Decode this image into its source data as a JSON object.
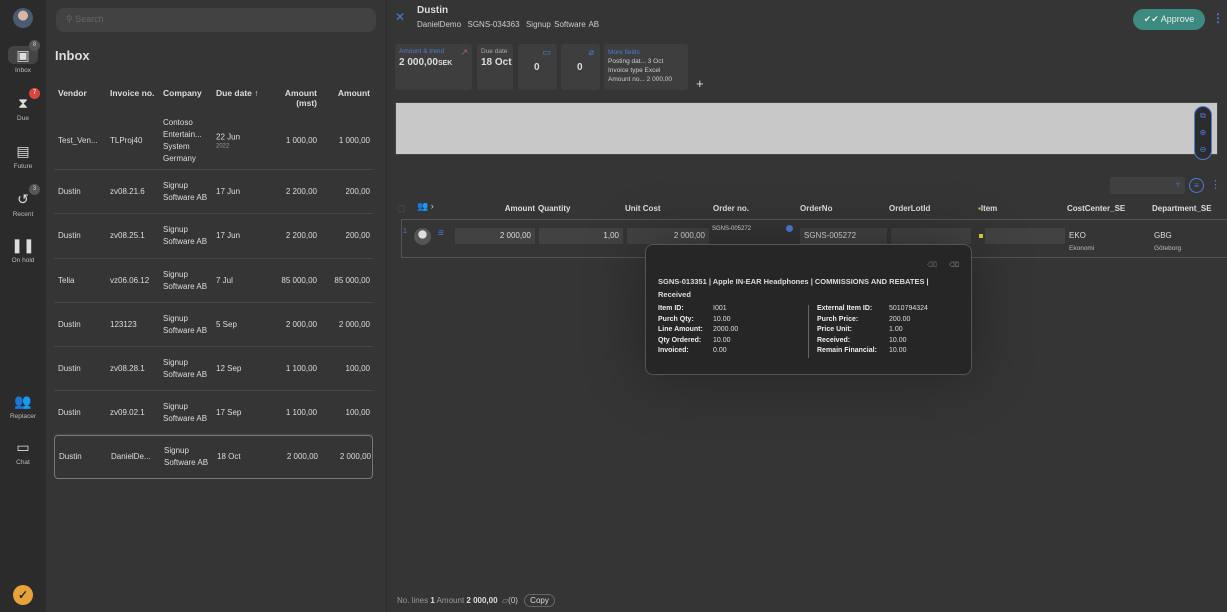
{
  "rail": {
    "items": [
      {
        "label": "Inbox",
        "icon": "inbox-icon",
        "badge": "8"
      },
      {
        "label": "Due",
        "icon": "hourglass-icon",
        "badge": "7"
      },
      {
        "label": "Future",
        "icon": "calendar-icon"
      },
      {
        "label": "Recent",
        "icon": "history-icon",
        "badge": "3"
      },
      {
        "label": "On hold",
        "icon": "pause-icon"
      },
      {
        "label": "Replacer",
        "icon": "people-icon"
      },
      {
        "label": "Chat",
        "icon": "chat-icon"
      }
    ]
  },
  "list": {
    "search_placeholder": "Search",
    "title": "Inbox",
    "columns": [
      "Vendor",
      "Invoice no.",
      "Company",
      "Due date ↑",
      "Amount (mst)",
      "Amount"
    ],
    "rows": [
      {
        "vendor": "Test_Ven...",
        "invoice": "TLProj40",
        "company": "Contoso Entertain... System Germany",
        "due": "22 Jun",
        "due_year": "2022",
        "amount_mst": "1 000,00",
        "amount": "1 000,00"
      },
      {
        "vendor": "Dustin",
        "invoice": "zv08.21.6",
        "company": "Signup Software AB",
        "due": "17 Jun",
        "amount_mst": "2 200,00",
        "amount": "200,00"
      },
      {
        "vendor": "Dustin",
        "invoice": "zv08.25.1",
        "company": "Signup Software AB",
        "due": "17 Jun",
        "amount_mst": "2 200,00",
        "amount": "200,00"
      },
      {
        "vendor": "Telia",
        "invoice": "vz06.06.12",
        "company": "Signup Software AB",
        "due": "7 Jul",
        "amount_mst": "85 000,00",
        "amount": "85 000,00"
      },
      {
        "vendor": "Dustin",
        "invoice": "123123",
        "company": "Signup Software AB",
        "due": "5 Sep",
        "amount_mst": "2 000,00",
        "amount": "2 000,00"
      },
      {
        "vendor": "Dustin",
        "invoice": "zv08.28.1",
        "company": "Signup Software AB",
        "due": "12 Sep",
        "amount_mst": "1 100,00",
        "amount": "100,00"
      },
      {
        "vendor": "Dustin",
        "invoice": "zv09.02.1",
        "company": "Signup Software AB",
        "due": "17 Sep",
        "amount_mst": "1 100,00",
        "amount": "100,00"
      },
      {
        "vendor": "Dustin",
        "invoice": "DanielDe...",
        "company": "Signup Software AB",
        "due": "18 Oct",
        "amount_mst": "2 000,00",
        "amount": "2 000,00",
        "selected": true
      }
    ]
  },
  "header": {
    "vendor": "Dustin",
    "sub1": "DanielDemo",
    "sub2": "SGNS-034363",
    "sub3": "Signup Software AB",
    "approve": "Approve"
  },
  "cards": {
    "amount_label": "Amount & trend",
    "amount": "2 000,00",
    "currency": "SEK",
    "due_label": "Due date",
    "due": "18 Oct",
    "comments": "0",
    "attachments": "0",
    "more_label": "More fields",
    "more": [
      {
        "k": "Posting dat...",
        "v": "3 Oct"
      },
      {
        "k": "Invoice type",
        "v": "Excel"
      },
      {
        "k": "Amount no...",
        "v": "2 000,00"
      }
    ]
  },
  "grid": {
    "columns": [
      "Amount",
      "Quantity",
      "Unit Cost",
      "Order no.",
      "OrderNo",
      "OrderLotId",
      "Item",
      "CostCenter_SE",
      "Department_SE"
    ],
    "row": {
      "num": "1",
      "amount": "2 000,00",
      "quantity": "1,00",
      "unit_cost": "2 000,00",
      "order_no": "SGNS-005272",
      "orderno": "SGNS-005272",
      "cost_center": "EKO",
      "cost_center_sub": "Ekonomi",
      "department": "GBG",
      "department_sub": "Göteborg"
    }
  },
  "popup": {
    "title": "SGNS-013351 | Apple IN-EAR Headphones | COMMISSIONS AND REBATES | Received",
    "left": [
      {
        "k": "Item ID:",
        "v": "I001"
      },
      {
        "k": "Purch Qty:",
        "v": "10.00"
      },
      {
        "k": "Line Amount:",
        "v": "2000.00"
      },
      {
        "k": "Qty Ordered:",
        "v": "10.00"
      },
      {
        "k": "Invoiced:",
        "v": "0.00"
      }
    ],
    "right": [
      {
        "k": "External Item ID:",
        "v": "5010794324"
      },
      {
        "k": "Purch Price:",
        "v": "200.00"
      },
      {
        "k": "Price Unit:",
        "v": "1.00"
      },
      {
        "k": "Received:",
        "v": "10.00"
      },
      {
        "k": "Remain Financial:",
        "v": "10.00"
      }
    ]
  },
  "footer": {
    "lines_label": "No. lines",
    "lines": "1",
    "amount_label": "Amount",
    "amount": "2 000,00",
    "comments": "(0)",
    "copy": "Copy"
  },
  "colors": {
    "approve": "#3d8a80",
    "accent": "#4d7bd6",
    "badge_red": "#d9443f",
    "logo": "#e8a23a"
  }
}
